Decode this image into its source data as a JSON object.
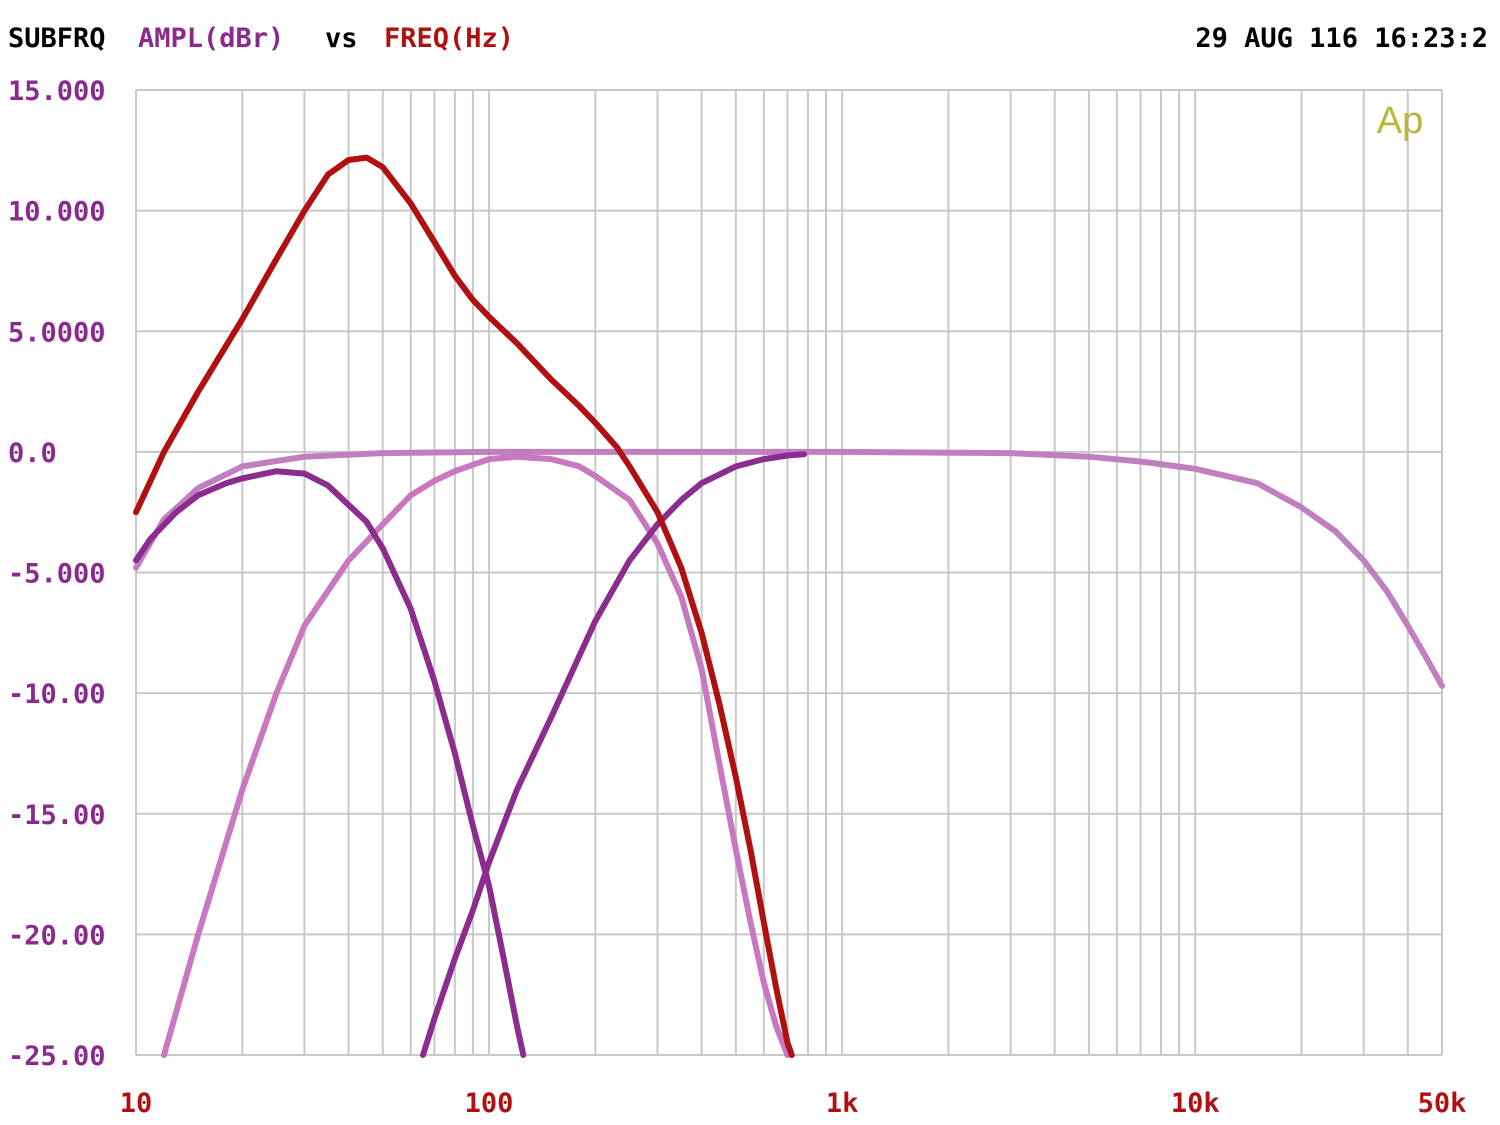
{
  "header": {
    "title_prefix": "SUBFRQ",
    "y_label": "AMPL(dBr)",
    "vs": "vs",
    "x_label": "FREQ(Hz)",
    "timestamp": "29 AUG 116 16:23:2"
  },
  "logo_text": "Ap",
  "colors": {
    "y_label": "#8a2a8e",
    "x_label": "#b01010",
    "grid": "#c8c8c8",
    "logo": "#b8b838"
  },
  "chart_data": {
    "type": "line",
    "x_scale": "log",
    "xlim": [
      10,
      50000
    ],
    "ylim": [
      -25,
      15
    ],
    "grid": true,
    "x_tick_labels": [
      {
        "value": 10,
        "label": "10"
      },
      {
        "value": 100,
        "label": "100"
      },
      {
        "value": 1000,
        "label": "1k"
      },
      {
        "value": 10000,
        "label": "10k"
      },
      {
        "value": 50000,
        "label": "50k"
      }
    ],
    "y_tick_labels": [
      {
        "value": 15,
        "label": "15.000"
      },
      {
        "value": 10,
        "label": "10.000"
      },
      {
        "value": 5,
        "label": "5.0000"
      },
      {
        "value": 0,
        "label": "0.0"
      },
      {
        "value": -5,
        "label": "-5.000"
      },
      {
        "value": -10,
        "label": "-10.00"
      },
      {
        "value": -15,
        "label": "-15.00"
      },
      {
        "value": -20,
        "label": "-20.00"
      },
      {
        "value": -25,
        "label": "-25.00"
      }
    ],
    "series": [
      {
        "color": "#c080c0",
        "points": [
          [
            10,
            -4.8
          ],
          [
            12,
            -2.8
          ],
          [
            15,
            -1.5
          ],
          [
            20,
            -0.6
          ],
          [
            30,
            -0.2
          ],
          [
            50,
            -0.05
          ],
          [
            100,
            0
          ],
          [
            1000,
            0
          ],
          [
            3000,
            -0.05
          ],
          [
            5000,
            -0.2
          ],
          [
            7000,
            -0.4
          ],
          [
            10000,
            -0.7
          ],
          [
            15000,
            -1.3
          ],
          [
            20000,
            -2.3
          ],
          [
            25000,
            -3.3
          ],
          [
            30000,
            -4.5
          ],
          [
            35000,
            -5.8
          ],
          [
            40000,
            -7.2
          ],
          [
            45000,
            -8.5
          ],
          [
            50000,
            -9.7
          ]
        ]
      },
      {
        "color": "#c878c0",
        "points": [
          [
            12,
            -25
          ],
          [
            15,
            -20
          ],
          [
            20,
            -14
          ],
          [
            25,
            -10
          ],
          [
            30,
            -7.2
          ],
          [
            40,
            -4.5
          ],
          [
            50,
            -3
          ],
          [
            60,
            -1.8
          ],
          [
            70,
            -1.2
          ],
          [
            80,
            -0.8
          ],
          [
            100,
            -0.3
          ],
          [
            120,
            -0.2
          ],
          [
            150,
            -0.3
          ],
          [
            180,
            -0.6
          ],
          [
            200,
            -1
          ],
          [
            250,
            -2
          ],
          [
            300,
            -3.8
          ],
          [
            350,
            -6
          ],
          [
            400,
            -9
          ],
          [
            450,
            -13
          ],
          [
            500,
            -16.5
          ],
          [
            550,
            -19.5
          ],
          [
            600,
            -22
          ],
          [
            650,
            -23.8
          ],
          [
            700,
            -25
          ]
        ]
      },
      {
        "color": "#8b2c8f",
        "points": [
          [
            10,
            -4.5
          ],
          [
            11,
            -3.6
          ],
          [
            13,
            -2.5
          ],
          [
            15,
            -1.8
          ],
          [
            18,
            -1.3
          ],
          [
            20,
            -1.1
          ],
          [
            25,
            -0.8
          ],
          [
            30,
            -0.9
          ],
          [
            35,
            -1.4
          ],
          [
            40,
            -2.2
          ],
          [
            45,
            -2.9
          ],
          [
            50,
            -4
          ],
          [
            60,
            -6.5
          ],
          [
            70,
            -9.5
          ],
          [
            80,
            -12.5
          ],
          [
            90,
            -15.5
          ],
          [
            100,
            -18
          ],
          [
            110,
            -21
          ],
          [
            120,
            -23.8
          ],
          [
            125,
            -25
          ]
        ]
      },
      {
        "color": "#8b2c8f",
        "points": [
          [
            65,
            -25
          ],
          [
            70,
            -23.5
          ],
          [
            80,
            -21
          ],
          [
            90,
            -19
          ],
          [
            100,
            -17
          ],
          [
            120,
            -14
          ],
          [
            150,
            -11
          ],
          [
            200,
            -7
          ],
          [
            250,
            -4.5
          ],
          [
            300,
            -3
          ],
          [
            350,
            -2
          ],
          [
            400,
            -1.3
          ],
          [
            500,
            -0.6
          ],
          [
            600,
            -0.3
          ],
          [
            700,
            -0.15
          ],
          [
            780,
            -0.1
          ]
        ]
      },
      {
        "color": "#b01010",
        "points": [
          [
            10,
            -2.5
          ],
          [
            12,
            0
          ],
          [
            15,
            2.5
          ],
          [
            20,
            5.5
          ],
          [
            25,
            8
          ],
          [
            30,
            10
          ],
          [
            35,
            11.5
          ],
          [
            40,
            12.1
          ],
          [
            45,
            12.2
          ],
          [
            50,
            11.8
          ],
          [
            60,
            10.3
          ],
          [
            70,
            8.7
          ],
          [
            80,
            7.3
          ],
          [
            90,
            6.3
          ],
          [
            100,
            5.6
          ],
          [
            120,
            4.5
          ],
          [
            150,
            3
          ],
          [
            180,
            1.9
          ],
          [
            200,
            1.2
          ],
          [
            230,
            0.2
          ],
          [
            250,
            -0.6
          ],
          [
            300,
            -2.5
          ],
          [
            350,
            -4.8
          ],
          [
            400,
            -7.5
          ],
          [
            450,
            -10.5
          ],
          [
            500,
            -13.5
          ],
          [
            550,
            -16.5
          ],
          [
            600,
            -19.5
          ],
          [
            650,
            -22.2
          ],
          [
            700,
            -24.5
          ],
          [
            720,
            -25
          ]
        ]
      }
    ]
  }
}
